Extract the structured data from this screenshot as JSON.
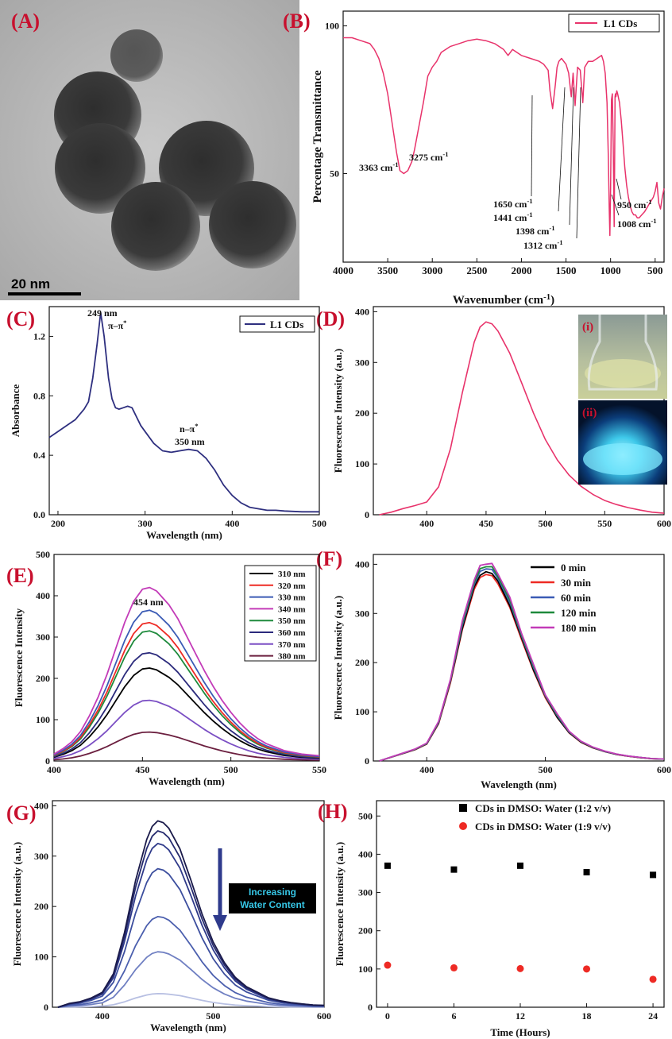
{
  "panels": {
    "A": {
      "letter": "(A)",
      "scale_bar_label": "20 nm"
    },
    "B": {
      "letter": "(B)"
    },
    "C": {
      "letter": "(C)"
    },
    "D": {
      "letter": "(D)",
      "inset_labels": [
        "(i)",
        "(ii)"
      ]
    },
    "E": {
      "letter": "(E)"
    },
    "F": {
      "letter": "(F)"
    },
    "G": {
      "letter": "(G)",
      "callout": [
        "Increasing",
        "Water Content"
      ]
    },
    "H": {
      "letter": "(H)"
    }
  },
  "colors": {
    "pink": "#e8336b",
    "navy": "#2e2f7f",
    "letter": "#c8102e",
    "callout_bg": "#000000",
    "callout_text": "#36c6e6",
    "arrow": "#2e3a8c"
  },
  "chart_data": [
    {
      "id": "B",
      "type": "line",
      "xlabel": "Wavenumber (cm",
      "xlabel_sup": "-1",
      "xlabel_tail": ")",
      "ylabel": "Percentage Transmittance",
      "xlim": [
        4000,
        400
      ],
      "ylim": [
        20,
        105
      ],
      "xticks": [
        "4000",
        "3500",
        "3000",
        "2500",
        "2000",
        "1500",
        "1000",
        "500"
      ],
      "yticks": [
        "50",
        "100"
      ],
      "series": [
        {
          "name": "L1 CDs",
          "color": "#e8336b",
          "x": [
            4000,
            3900,
            3800,
            3700,
            3650,
            3600,
            3550,
            3500,
            3450,
            3400,
            3363,
            3320,
            3275,
            3230,
            3200,
            3150,
            3100,
            3050,
            3000,
            2950,
            2900,
            2800,
            2700,
            2600,
            2500,
            2400,
            2300,
            2200,
            2150,
            2100,
            2000,
            1900,
            1800,
            1750,
            1700,
            1680,
            1650,
            1620,
            1600,
            1580,
            1550,
            1500,
            1470,
            1441,
            1420,
            1398,
            1370,
            1340,
            1312,
            1290,
            1250,
            1200,
            1150,
            1100,
            1080,
            1060,
            1040,
            1025,
            1015,
            1008,
            1000,
            990,
            980,
            970,
            960,
            955,
            950,
            945,
            940,
            930,
            920,
            900,
            880,
            860,
            840,
            820,
            800,
            780,
            760,
            740,
            720,
            700,
            680,
            650,
            620,
            600,
            580,
            560,
            540,
            520,
            500,
            480,
            460,
            440,
            420,
            400
          ],
          "y": [
            96,
            96,
            95,
            94,
            92,
            89,
            84,
            77,
            67,
            57,
            51,
            50,
            51,
            54,
            58,
            66,
            74,
            83,
            86,
            88,
            91,
            93,
            94,
            95,
            95.5,
            95,
            94,
            92,
            90,
            92,
            90,
            89,
            88,
            87,
            85,
            78,
            72,
            80,
            86,
            88,
            89,
            87,
            84,
            76,
            84,
            73,
            86,
            85,
            74,
            86,
            88,
            88,
            89,
            90,
            88,
            84,
            74,
            55,
            38,
            29,
            45,
            75,
            77,
            60,
            32,
            50,
            76,
            77,
            76,
            78,
            77,
            74,
            68,
            60,
            52,
            46,
            42,
            39,
            37,
            36,
            36,
            35,
            35,
            36,
            37,
            38,
            39,
            40,
            41,
            42,
            44,
            47,
            40,
            38,
            42,
            45
          ]
        }
      ],
      "annotations": [
        "3363 cm",
        "3275 cm",
        "1650 cm",
        "1441 cm",
        "1398 cm",
        "1312 cm",
        "950 cm",
        "1008 cm"
      ],
      "annotation_sup": "-1",
      "legend": "top-right"
    },
    {
      "id": "C",
      "type": "line",
      "xlabel": "Wavelength (nm)",
      "ylabel": "Absorbance",
      "xlim": [
        190,
        500
      ],
      "ylim": [
        0,
        1.4
      ],
      "xticks": [
        "200",
        "300",
        "400",
        "500"
      ],
      "yticks": [
        "0.0",
        "0.4",
        "0.8",
        "1.2"
      ],
      "series": [
        {
          "name": "L1 CDs",
          "color": "#2e2f7f",
          "x": [
            190,
            200,
            210,
            220,
            230,
            235,
            240,
            245,
            249,
            253,
            258,
            262,
            266,
            270,
            275,
            280,
            285,
            290,
            295,
            300,
            305,
            310,
            320,
            330,
            340,
            350,
            360,
            370,
            380,
            390,
            400,
            410,
            420,
            430,
            440,
            450,
            460,
            480,
            500
          ],
          "y": [
            0.52,
            0.56,
            0.6,
            0.64,
            0.71,
            0.76,
            0.92,
            1.15,
            1.36,
            1.2,
            0.92,
            0.78,
            0.72,
            0.71,
            0.72,
            0.73,
            0.72,
            0.66,
            0.6,
            0.56,
            0.52,
            0.48,
            0.43,
            0.42,
            0.43,
            0.44,
            0.43,
            0.38,
            0.3,
            0.2,
            0.13,
            0.08,
            0.05,
            0.04,
            0.03,
            0.03,
            0.025,
            0.02,
            0.02
          ]
        }
      ],
      "annotations": [
        "249 nm",
        "π–π",
        "n–π",
        "350 nm"
      ],
      "annotation_sup": "*",
      "legend": "top-right"
    },
    {
      "id": "D",
      "type": "line",
      "xlabel": "",
      "ylabel": "Fluorescence Intensity (a.u.)",
      "xlim": [
        355,
        600
      ],
      "ylim": [
        0,
        410
      ],
      "xticks": [
        "400",
        "450",
        "500",
        "550",
        "600"
      ],
      "yticks": [
        "0",
        "100",
        "200",
        "300",
        "400"
      ],
      "series": [
        {
          "name": "",
          "color": "#e8336b",
          "x": [
            360,
            370,
            380,
            390,
            400,
            410,
            420,
            430,
            440,
            445,
            450,
            455,
            460,
            470,
            480,
            490,
            500,
            510,
            520,
            530,
            540,
            550,
            560,
            570,
            580,
            590,
            600
          ],
          "y": [
            0,
            5,
            12,
            18,
            25,
            55,
            130,
            240,
            340,
            370,
            380,
            376,
            362,
            318,
            260,
            200,
            148,
            108,
            78,
            56,
            40,
            28,
            20,
            14,
            9,
            5,
            3
          ]
        }
      ],
      "legend": "none"
    },
    {
      "id": "E",
      "type": "line",
      "xlabel": "Wavelength (nm)",
      "ylabel": "Fluorescence Intensity",
      "xlim": [
        400,
        550
      ],
      "ylim": [
        0,
        500
      ],
      "xticks": [
        "400",
        "450",
        "500",
        "550"
      ],
      "yticks": [
        "0",
        "100",
        "200",
        "300",
        "400",
        "500"
      ],
      "peak_label": "454 nm",
      "x": [
        400,
        405,
        410,
        415,
        420,
        425,
        430,
        435,
        440,
        445,
        450,
        454,
        458,
        465,
        470,
        475,
        480,
        485,
        490,
        495,
        500,
        505,
        510,
        515,
        520,
        525,
        530,
        535,
        540,
        545,
        550
      ],
      "shape": [
        0.04,
        0.07,
        0.11,
        0.17,
        0.26,
        0.37,
        0.5,
        0.65,
        0.8,
        0.92,
        0.99,
        1.0,
        0.98,
        0.9,
        0.82,
        0.72,
        0.62,
        0.52,
        0.43,
        0.35,
        0.28,
        0.22,
        0.17,
        0.13,
        0.1,
        0.08,
        0.06,
        0.05,
        0.04,
        0.035,
        0.03
      ],
      "series": [
        {
          "name": "310 nm",
          "peak": 225,
          "color": "#000000"
        },
        {
          "name": "320 nm",
          "peak": 335,
          "color": "#ee2a24"
        },
        {
          "name": "330 nm",
          "peak": 365,
          "color": "#3b5bb5"
        },
        {
          "name": "340 nm",
          "peak": 420,
          "color": "#c33bb8"
        },
        {
          "name": "350 nm",
          "peak": 315,
          "color": "#1e8a3c"
        },
        {
          "name": "360 nm",
          "peak": 262,
          "color": "#2b2a7c"
        },
        {
          "name": "370 nm",
          "peak": 147,
          "color": "#7b4fc4"
        },
        {
          "name": "380 nm",
          "peak": 70,
          "color": "#6b1f3f"
        }
      ],
      "legend": "top-right"
    },
    {
      "id": "F",
      "type": "line",
      "xlabel": "Wavelength (nm)",
      "ylabel": "Fluorescence Intensity (a.u.)",
      "xlim": [
        355,
        600
      ],
      "ylim": [
        0,
        420
      ],
      "xticks": [
        "400",
        "500",
        "600"
      ],
      "yticks": [
        "0",
        "100",
        "200",
        "300",
        "400"
      ],
      "x": [
        360,
        370,
        380,
        390,
        400,
        410,
        420,
        430,
        440,
        445,
        450,
        455,
        460,
        470,
        480,
        490,
        500,
        510,
        520,
        530,
        540,
        550,
        560,
        570,
        580,
        590,
        600
      ],
      "shape": [
        0.0,
        0.02,
        0.04,
        0.06,
        0.09,
        0.2,
        0.42,
        0.7,
        0.92,
        0.98,
        1.0,
        0.99,
        0.95,
        0.82,
        0.65,
        0.48,
        0.34,
        0.23,
        0.15,
        0.1,
        0.07,
        0.05,
        0.035,
        0.025,
        0.018,
        0.012,
        0.01
      ],
      "series": [
        {
          "name": "0 min",
          "peak": 385,
          "color": "#000000"
        },
        {
          "name": "30 min",
          "peak": 380,
          "color": "#ee2a24"
        },
        {
          "name": "60 min",
          "peak": 392,
          "color": "#3b5bb5"
        },
        {
          "name": "120 min",
          "peak": 397,
          "color": "#1e8a3c"
        },
        {
          "name": "180 min",
          "peak": 403,
          "color": "#c33bb8"
        }
      ],
      "legend": "top-right"
    },
    {
      "id": "G",
      "type": "line",
      "xlabel": "Wavelength (nm)",
      "ylabel": "Fluorescence Intensity (a.u.)",
      "xlim": [
        355,
        600
      ],
      "ylim": [
        0,
        410
      ],
      "xticks": [
        "400",
        "500",
        "600"
      ],
      "yticks": [
        "0",
        "100",
        "200",
        "300",
        "400"
      ],
      "x": [
        360,
        370,
        380,
        390,
        400,
        410,
        420,
        430,
        440,
        445,
        450,
        455,
        460,
        470,
        480,
        490,
        500,
        510,
        520,
        530,
        540,
        550,
        560,
        570,
        580,
        590,
        600
      ],
      "shape": [
        0.0,
        0.02,
        0.03,
        0.05,
        0.08,
        0.18,
        0.4,
        0.68,
        0.9,
        0.97,
        1.0,
        0.99,
        0.96,
        0.85,
        0.68,
        0.5,
        0.35,
        0.24,
        0.16,
        0.11,
        0.08,
        0.05,
        0.035,
        0.025,
        0.018,
        0.012,
        0.01
      ],
      "series": [
        {
          "name": "",
          "peak": 370,
          "color": "#1a1a4a"
        },
        {
          "name": "",
          "peak": 350,
          "color": "#252a6e"
        },
        {
          "name": "",
          "peak": 325,
          "color": "#2f3a8a"
        },
        {
          "name": "",
          "peak": 275,
          "color": "#3c4e9e"
        },
        {
          "name": "",
          "peak": 180,
          "color": "#4b5fae"
        },
        {
          "name": "",
          "peak": 110,
          "color": "#6f7fc2"
        },
        {
          "name": "",
          "peak": 27,
          "color": "#b7bfe2"
        }
      ],
      "legend": "none"
    },
    {
      "id": "H",
      "type": "scatter",
      "xlabel": "Time (Hours)",
      "ylabel": "Fluorescence Intensity (a.u.)",
      "xlim": [
        -1,
        25
      ],
      "ylim": [
        0,
        540
      ],
      "xticks": [
        "0",
        "6",
        "12",
        "18",
        "24"
      ],
      "yticks": [
        "0",
        "100",
        "200",
        "300",
        "400",
        "500"
      ],
      "series": [
        {
          "name": "CDs in DMSO: Water (1:2 v/v)",
          "marker": "square",
          "color": "#000000",
          "x": [
            0,
            6,
            12,
            18,
            24
          ],
          "y": [
            370,
            360,
            370,
            353,
            346
          ]
        },
        {
          "name": "CDs in DMSO: Water (1:9 v/v)",
          "marker": "circle",
          "color": "#ee2a24",
          "x": [
            0,
            6,
            12,
            18,
            24
          ],
          "y": [
            110,
            103,
            101,
            100,
            73
          ]
        }
      ],
      "legend": "top-right"
    }
  ]
}
